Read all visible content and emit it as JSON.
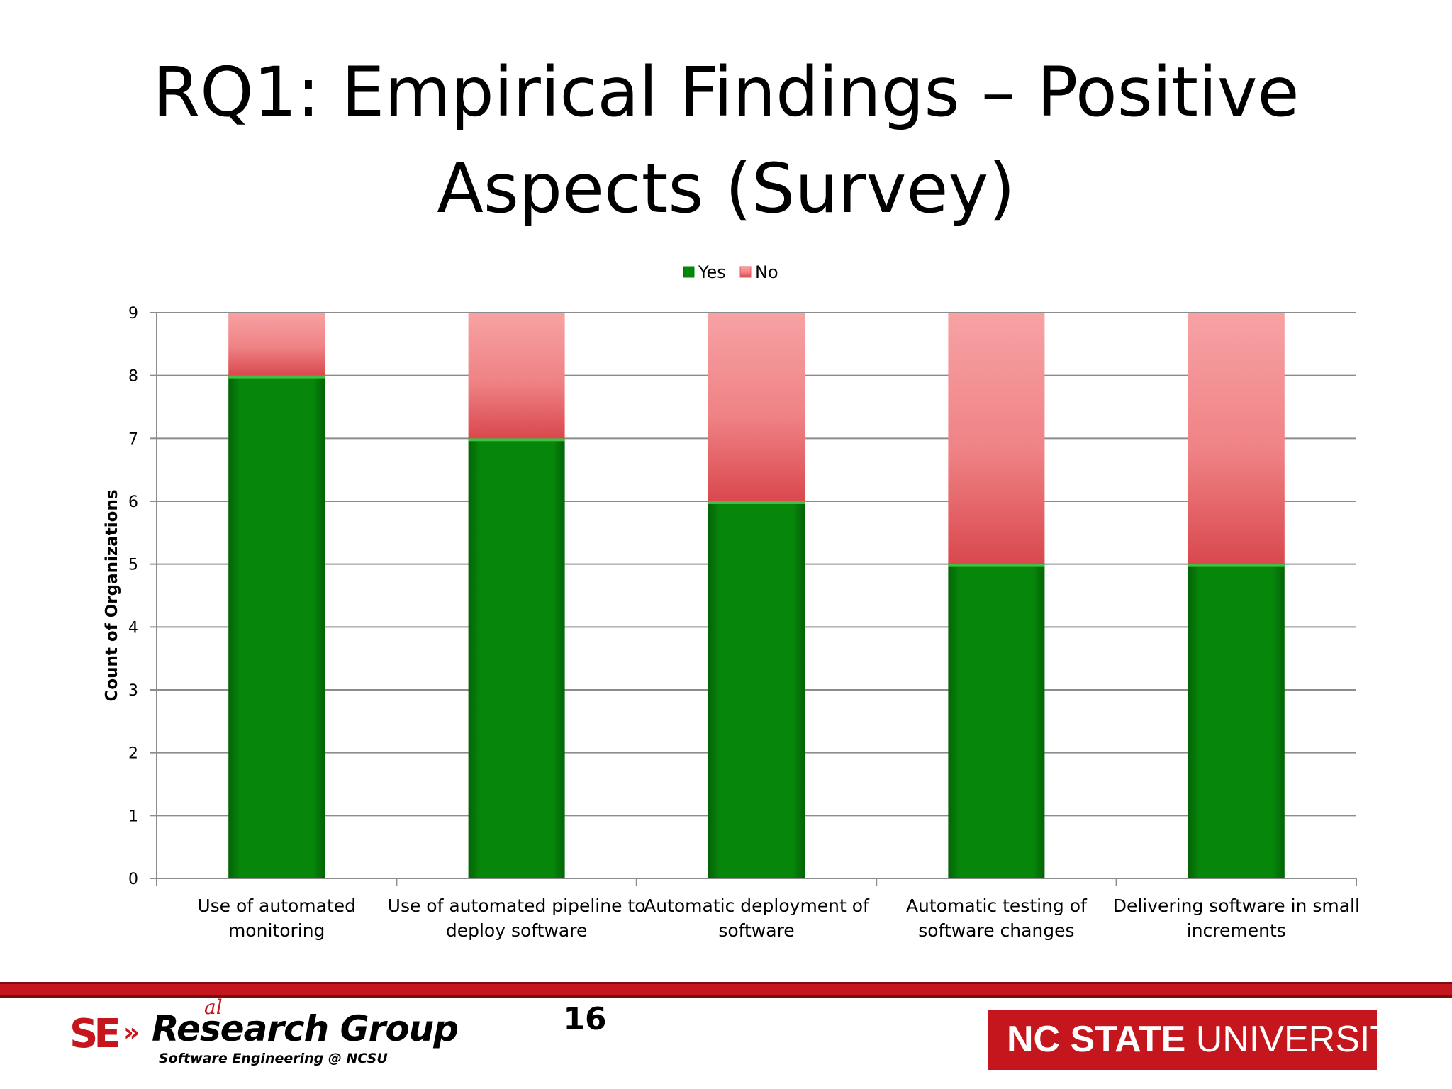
{
  "slide": {
    "title_line1": "RQ1: Empirical Findings – Positive",
    "title_line2": "Aspects (Survey)",
    "page_number": "16"
  },
  "footer": {
    "logo_mark": "SE",
    "logo_arrows": "»",
    "logo_name": "Research Group",
    "logo_superscript": "al",
    "logo_subtitle": "Software Engineering @ NCSU",
    "university_bold": "NC STATE",
    "university_rest": " UNIVERSITY"
  },
  "colors": {
    "yes": "#06870a",
    "no": "#e6575c",
    "brand_red": "#c4161c"
  },
  "chart_data": {
    "type": "bar",
    "stacked": true,
    "categories": [
      [
        "Use of automated",
        "monitoring"
      ],
      [
        "Use of automated pipeline to",
        "deploy software"
      ],
      [
        "Automatic deployment of",
        "software"
      ],
      [
        "Automatic testing of",
        "software changes"
      ],
      [
        "Delivering software in small",
        "increments"
      ]
    ],
    "series": [
      {
        "name": "Yes",
        "values": [
          8,
          7,
          6,
          5,
          5
        ],
        "color": "#06870a"
      },
      {
        "name": "No",
        "values": [
          1,
          2,
          3,
          4,
          4
        ],
        "color": "#e6575c"
      }
    ],
    "xlabel": "",
    "ylabel": "Count of Organizations",
    "ylim": [
      0,
      9
    ],
    "yticks": [
      0,
      1,
      2,
      3,
      4,
      5,
      6,
      7,
      8,
      9
    ],
    "grid": true,
    "legend_position": "top"
  }
}
